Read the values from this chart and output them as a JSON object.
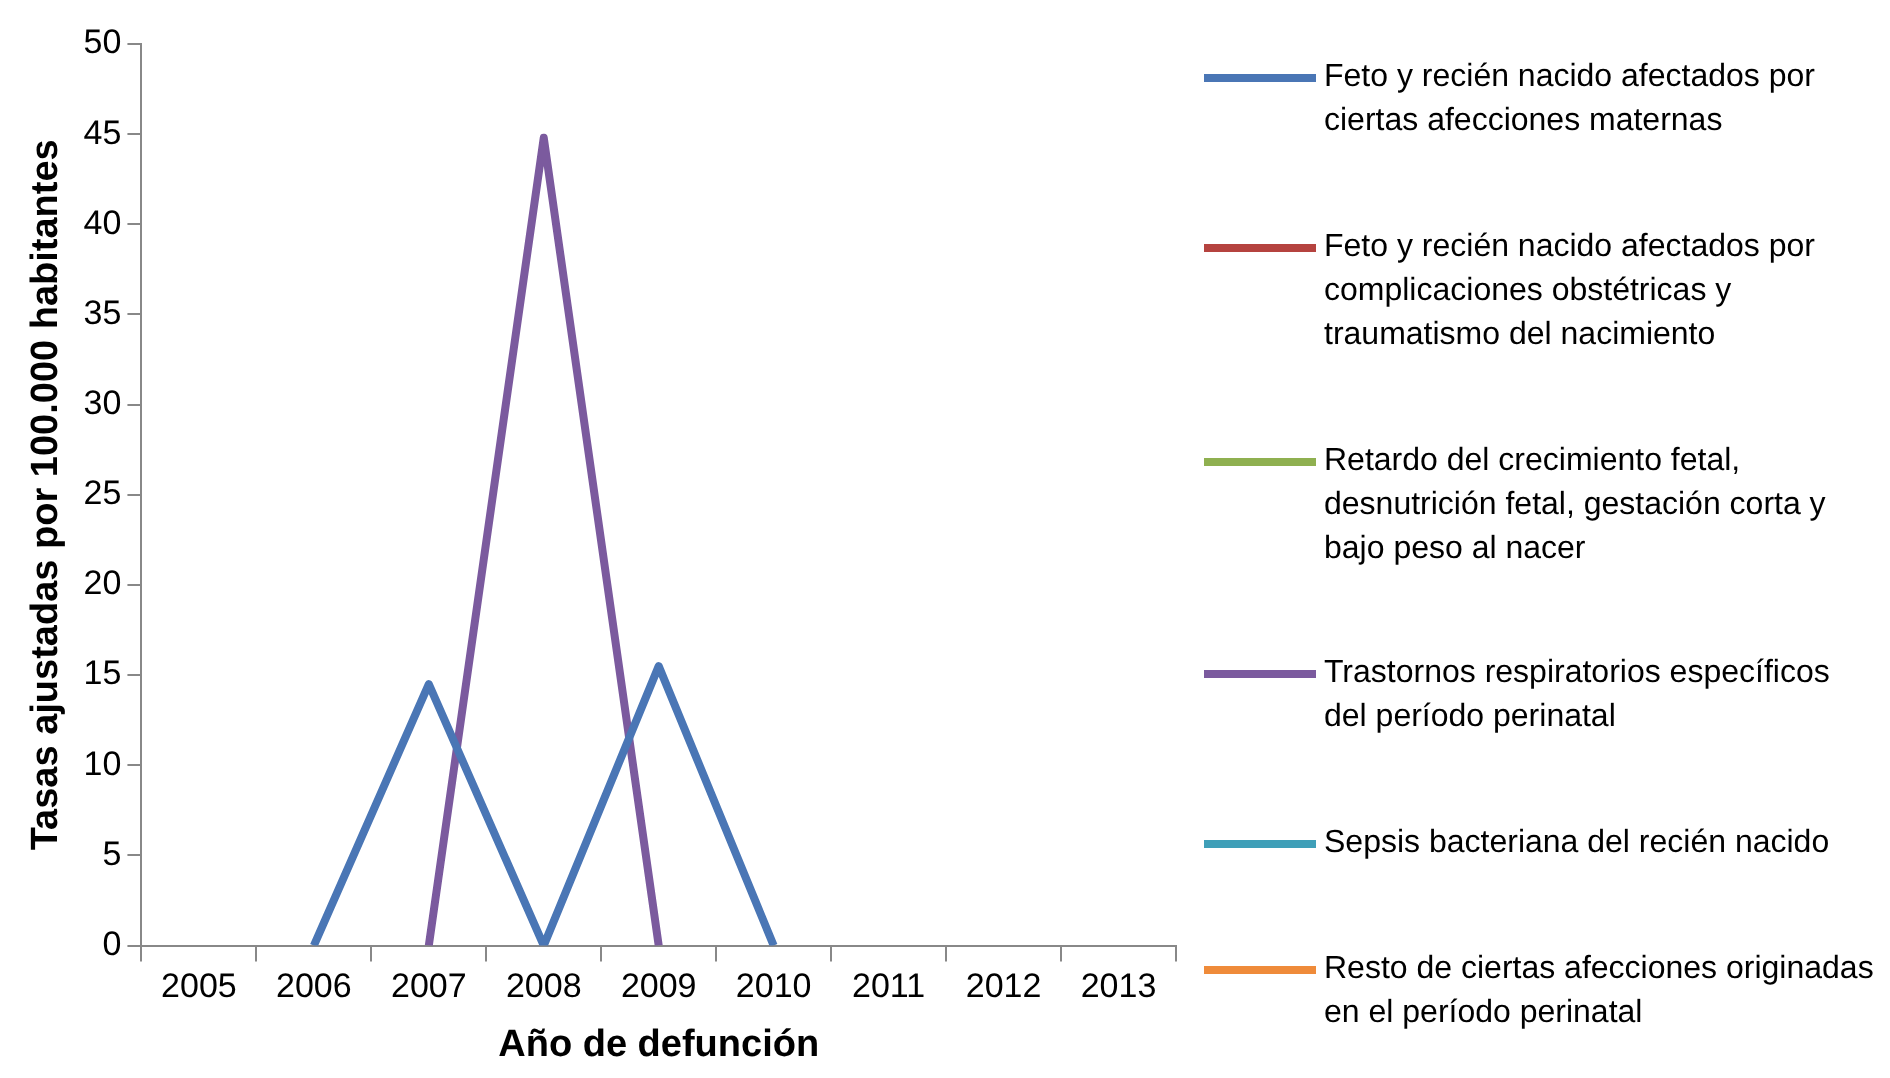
{
  "chart_data": {
    "type": "line",
    "xlabel": "Año de defunción",
    "ylabel": "Tasas ajustadas por 100.000 habitantes",
    "categories": [
      "2005",
      "2006",
      "2007",
      "2008",
      "2009",
      "2010",
      "2011",
      "2012",
      "2013"
    ],
    "ylim": [
      0,
      50
    ],
    "yticks": [
      0,
      5,
      10,
      15,
      20,
      25,
      30,
      35,
      40,
      45,
      50
    ],
    "grid": false,
    "legend": "right",
    "marker": "none",
    "series": [
      {
        "name": "Feto y recién nacido afectados por ciertas afecciones maternas",
        "color": "#4a76b5",
        "values": [
          null,
          0,
          14.5,
          0,
          15.5,
          0,
          null,
          null,
          null
        ]
      },
      {
        "name": "Feto y recién nacido afectados por complicaciones obstétricas y traumatismo del nacimiento",
        "color": "#b5433f",
        "values": [
          null,
          null,
          null,
          null,
          null,
          null,
          null,
          null,
          null
        ]
      },
      {
        "name": "Retardo del crecimiento fetal, desnutrición fetal, gestación corta y bajo peso al nacer",
        "color": "#8fb050",
        "values": [
          null,
          null,
          null,
          null,
          null,
          null,
          null,
          null,
          null
        ]
      },
      {
        "name": "Trastornos respiratorios específicos del período perinatal",
        "color": "#7b5a9e",
        "values": [
          null,
          null,
          0,
          44.8,
          0,
          null,
          null,
          null,
          null
        ]
      },
      {
        "name": "Sepsis bacteriana del recién nacido",
        "color": "#3f9fb8",
        "values": [
          null,
          null,
          null,
          null,
          null,
          null,
          null,
          null,
          null
        ]
      },
      {
        "name": "Resto de ciertas afecciones originadas en el período perinatal",
        "color": "#ef8b3a",
        "values": [
          null,
          null,
          null,
          null,
          null,
          null,
          null,
          null,
          null
        ]
      }
    ]
  }
}
